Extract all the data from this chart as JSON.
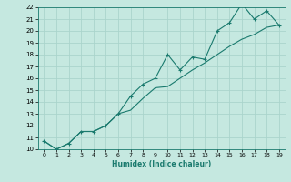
{
  "xlabel": "Humidex (Indice chaleur)",
  "x": [
    0,
    1,
    2,
    3,
    4,
    5,
    6,
    7,
    8,
    9,
    10,
    11,
    12,
    13,
    14,
    15,
    16,
    17,
    18,
    19
  ],
  "line1_y": [
    10.7,
    10.0,
    10.5,
    11.5,
    11.5,
    12.0,
    13.0,
    14.5,
    15.5,
    16.0,
    18.0,
    16.7,
    17.8,
    17.6,
    20.0,
    20.7,
    22.3,
    21.0,
    21.7,
    20.5
  ],
  "line2_y": [
    10.7,
    10.0,
    10.5,
    11.5,
    11.5,
    12.0,
    13.0,
    13.3,
    14.3,
    15.2,
    15.3,
    16.0,
    16.7,
    17.3,
    18.0,
    18.7,
    19.3,
    19.7,
    20.3,
    20.5
  ],
  "line_color": "#1a7a6e",
  "bg_color": "#c5e8e0",
  "grid_color": "#aad4cc",
  "ylim": [
    10,
    22
  ],
  "xlim": [
    -0.5,
    19.5
  ],
  "yticks": [
    10,
    11,
    12,
    13,
    14,
    15,
    16,
    17,
    18,
    19,
    20,
    21,
    22
  ],
  "xticks": [
    0,
    1,
    2,
    3,
    4,
    5,
    6,
    7,
    8,
    9,
    10,
    11,
    12,
    13,
    14,
    15,
    16,
    17,
    18,
    19
  ]
}
